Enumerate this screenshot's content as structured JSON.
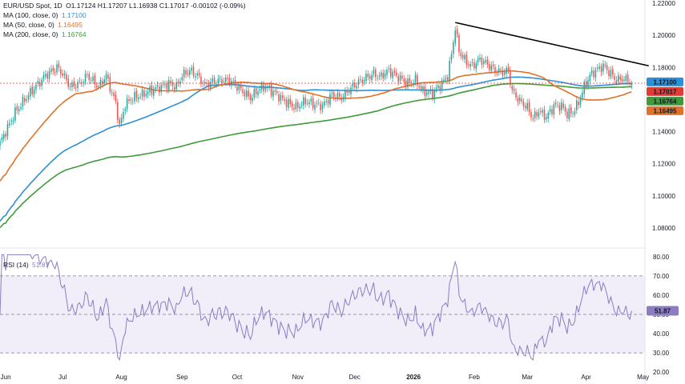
{
  "header": {
    "symbol": "EUR/USD Spot, 1D",
    "ohlc": "O1.17124  H1.17207  L1.16938  C1.17017  -0.00102 (-0.09%)"
  },
  "legend": [
    {
      "label": "MA (100, close, 0)",
      "value": "1.17100",
      "color": "#2d8fd6"
    },
    {
      "label": "MA (50, close, 0)",
      "value": "1.16495",
      "color": "#e0722b"
    },
    {
      "label": "MA (200, close, 0)",
      "value": "1.16764",
      "color": "#3f9b3a"
    }
  ],
  "rsi_legend": {
    "label": "RSI (14)",
    "value": "51.87",
    "color": "#8e7cc3"
  },
  "price_badges": [
    {
      "text": "1.17100",
      "value": 1.171,
      "bg": "#2d8fd6"
    },
    {
      "text": "1.17017",
      "value": 1.17017,
      "bg": "#e53935"
    },
    {
      "text": "1.16764",
      "value": 1.16764,
      "bg": "#3f9b3a"
    },
    {
      "text": "1.16495",
      "value": 1.16495,
      "bg": "#e0722b"
    }
  ],
  "rsi_badge": {
    "text": "51.87",
    "value": 51.87,
    "bg": "#8e7cc3"
  },
  "chart_data": {
    "type": "candlestick",
    "y_ticks": [
      "1.22000",
      "1.20000",
      "1.18000",
      "1.16000",
      "1.14000",
      "1.12000",
      "1.10000",
      "1.08000"
    ],
    "ylim": [
      1.07,
      1.222
    ],
    "x_ticks": [
      "Jun",
      "Jul",
      "Aug",
      "Sep",
      "Oct",
      "Nov",
      "Dec",
      "2026",
      "Feb",
      "Mar",
      "Apr",
      "May"
    ],
    "x_tick_days": [
      3,
      33,
      64,
      96,
      125,
      157,
      187,
      218,
      250,
      278,
      309,
      339
    ],
    "close_price": 1.17017,
    "key_closes": [
      [
        0,
        1.133
      ],
      [
        3,
        1.14
      ],
      [
        8,
        1.152
      ],
      [
        13,
        1.16
      ],
      [
        18,
        1.167
      ],
      [
        24,
        1.175
      ],
      [
        30,
        1.18
      ],
      [
        33,
        1.176
      ],
      [
        37,
        1.168
      ],
      [
        42,
        1.17
      ],
      [
        46,
        1.175
      ],
      [
        52,
        1.168
      ],
      [
        56,
        1.175
      ],
      [
        59,
        1.164
      ],
      [
        61,
        1.158
      ],
      [
        63,
        1.143
      ],
      [
        66,
        1.157
      ],
      [
        70,
        1.161
      ],
      [
        75,
        1.163
      ],
      [
        80,
        1.166
      ],
      [
        85,
        1.168
      ],
      [
        89,
        1.17
      ],
      [
        93,
        1.168
      ],
      [
        96,
        1.175
      ],
      [
        100,
        1.178
      ],
      [
        104,
        1.175
      ],
      [
        108,
        1.169
      ],
      [
        112,
        1.171
      ],
      [
        117,
        1.172
      ],
      [
        121,
        1.172
      ],
      [
        125,
        1.168
      ],
      [
        129,
        1.164
      ],
      [
        132,
        1.161
      ],
      [
        136,
        1.166
      ],
      [
        140,
        1.168
      ],
      [
        145,
        1.164
      ],
      [
        150,
        1.159
      ],
      [
        156,
        1.155
      ],
      [
        161,
        1.159
      ],
      [
        166,
        1.157
      ],
      [
        170,
        1.156
      ],
      [
        175,
        1.163
      ],
      [
        180,
        1.161
      ],
      [
        184,
        1.166
      ],
      [
        188,
        1.17
      ],
      [
        192,
        1.173
      ],
      [
        197,
        1.176
      ],
      [
        200,
        1.174
      ],
      [
        205,
        1.178
      ],
      [
        210,
        1.174
      ],
      [
        215,
        1.17
      ],
      [
        219,
        1.172
      ],
      [
        223,
        1.165
      ],
      [
        228,
        1.164
      ],
      [
        233,
        1.17
      ],
      [
        236,
        1.175
      ],
      [
        238,
        1.188
      ],
      [
        240,
        1.205
      ],
      [
        242,
        1.19
      ],
      [
        246,
        1.183
      ],
      [
        249,
        1.181
      ],
      [
        253,
        1.185
      ],
      [
        257,
        1.182
      ],
      [
        261,
        1.178
      ],
      [
        265,
        1.177
      ],
      [
        268,
        1.178
      ],
      [
        270,
        1.165
      ],
      [
        274,
        1.159
      ],
      [
        278,
        1.155
      ],
      [
        281,
        1.148
      ],
      [
        284,
        1.153
      ],
      [
        288,
        1.149
      ],
      [
        292,
        1.156
      ],
      [
        296,
        1.156
      ],
      [
        299,
        1.151
      ],
      [
        302,
        1.152
      ],
      [
        305,
        1.158
      ],
      [
        308,
        1.168
      ],
      [
        311,
        1.175
      ],
      [
        314,
        1.178
      ],
      [
        318,
        1.181
      ],
      [
        322,
        1.176
      ],
      [
        325,
        1.172
      ],
      [
        328,
        1.173
      ],
      [
        331,
        1.172
      ],
      [
        333,
        1.17017
      ]
    ],
    "trendline": [
      [
        240,
        1.208
      ],
      [
        342,
        1.181
      ]
    ],
    "series": [
      {
        "name": "MA (100, close, 0)",
        "last": 1.171
      },
      {
        "name": "MA (50, close, 0)",
        "last": 1.16495
      },
      {
        "name": "MA (200, close, 0)",
        "last": 1.16764
      }
    ],
    "rsi": {
      "name": "RSI (14)",
      "last": 51.87,
      "ylim": [
        18,
        82
      ],
      "y_ticks": [
        "80.00",
        "70.00",
        "60.00",
        "50.00",
        "40.00",
        "30.00",
        "20.00"
      ],
      "levels": [
        70,
        50,
        30
      ]
    }
  }
}
